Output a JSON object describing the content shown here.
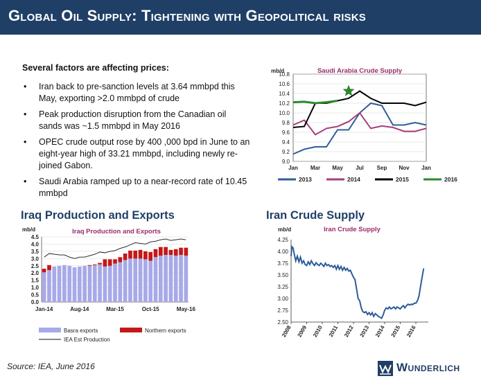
{
  "header": {
    "title": "Global Oil Supply: Tightening with Geopolitical risks"
  },
  "factors": {
    "heading": "Several factors are affecting prices:",
    "bullet_symbol": "•",
    "items": [
      "Iran back to pre-sanction levels at 3.64 mmbpd this May, exporting >2.0 mmbpd of crude",
      "Peak production disruption from the Canadian oil sands was ~1.5 mmbpd in May 2016",
      "OPEC crude output rose by 400 ,000 bpd in June to an eight-year high of 33.21 mmbpd, including newly re-joined Gabon.",
      "Saudi Arabia ramped up to a near-record rate of 10.45 mmbpd"
    ]
  },
  "sections": {
    "iraq_heading": "Iraq Production and Exports",
    "iran_heading": "Iran Crude Supply"
  },
  "footer": {
    "source": "Source: IEA, June 2016",
    "logo_text": "Wunderlich"
  },
  "colors": {
    "brand_navy": "#1f3f66",
    "chart_title_magenta": "#9b2a6a",
    "saudi_2013": "#2e5c9a",
    "saudi_2014": "#a63d7a",
    "saudi_2015": "#000000",
    "saudi_2016": "#2a8a2a",
    "basra": "#a7a9e8",
    "northern": "#c41818",
    "iran_line": "#2e5c9a"
  },
  "chart_data": [
    {
      "id": "saudi",
      "type": "line",
      "title": "Saudi Arabia Crude Supply",
      "ylabel": "mb/d",
      "ylim": [
        9.0,
        10.8
      ],
      "yticks": [
        "9.0",
        "9.2",
        "9.4",
        "9.6",
        "9.8",
        "10.0",
        "10.2",
        "10.4",
        "10.6",
        "10.8"
      ],
      "categories": [
        "Jan",
        "Feb",
        "Mar",
        "Apr",
        "May",
        "Jun",
        "Jul",
        "Aug",
        "Sep",
        "Oct",
        "Nov",
        "Dec",
        "Jan"
      ],
      "xtick_labels": [
        "Jan",
        "Mar",
        "May",
        "Jul",
        "Sep",
        "Nov",
        "Jan"
      ],
      "series": [
        {
          "name": "2013",
          "color": "#2e5c9a",
          "values": [
            9.15,
            9.25,
            9.3,
            9.3,
            9.65,
            9.65,
            10.0,
            10.2,
            10.15,
            9.75,
            9.75,
            9.8,
            9.75
          ]
        },
        {
          "name": "2014",
          "color": "#a63d7a",
          "values": [
            9.75,
            9.85,
            9.55,
            9.68,
            9.72,
            9.82,
            10.0,
            9.68,
            9.73,
            9.7,
            9.62,
            9.62,
            9.68
          ]
        },
        {
          "name": "2015",
          "color": "#000000",
          "values": [
            9.7,
            9.72,
            10.2,
            10.2,
            10.25,
            10.3,
            10.45,
            10.3,
            10.2,
            10.2,
            10.2,
            10.15,
            10.22
          ]
        },
        {
          "name": "2016",
          "color": "#2a8a2a",
          "values": [
            10.22,
            10.23,
            10.2,
            10.22,
            10.25,
            null,
            null,
            null,
            null,
            null,
            null,
            null,
            null
          ]
        }
      ],
      "annotations": [
        {
          "type": "star",
          "x": "Jun",
          "y": 10.45,
          "color": "#2a8a2a"
        }
      ]
    },
    {
      "id": "iraq",
      "type": "bar",
      "title": "Iraq Production and Exports",
      "ylabel": "mb/d",
      "ylim": [
        0.0,
        4.5
      ],
      "yticks": [
        "0.0",
        "0.5",
        "1.0",
        "1.5",
        "2.0",
        "2.5",
        "3.0",
        "3.5",
        "4.0",
        "4.5"
      ],
      "xtick_labels": [
        "Jan-14",
        "Aug-14",
        "Mar-15",
        "Oct-15",
        "May-16"
      ],
      "categories": [
        "Jan-14",
        "Feb-14",
        "Mar-14",
        "Apr-14",
        "May-14",
        "Jun-14",
        "Jul-14",
        "Aug-14",
        "Sep-14",
        "Oct-14",
        "Nov-14",
        "Dec-14",
        "Jan-15",
        "Feb-15",
        "Mar-15",
        "Apr-15",
        "May-15",
        "Jun-15",
        "Jul-15",
        "Aug-15",
        "Sep-15",
        "Oct-15",
        "Nov-15",
        "Dec-15",
        "Jan-16",
        "Feb-16",
        "Mar-16",
        "Apr-16",
        "May-16"
      ],
      "series": [
        {
          "name": "Basra exports",
          "color": "#a7a9e8",
          "kind": "bar",
          "values": [
            2.05,
            2.2,
            2.45,
            2.5,
            2.55,
            2.5,
            2.4,
            2.45,
            2.5,
            2.5,
            2.55,
            2.6,
            2.45,
            2.5,
            2.65,
            2.75,
            2.9,
            3.0,
            3.0,
            3.0,
            2.95,
            2.85,
            3.1,
            3.2,
            3.25,
            3.25,
            3.2,
            3.25,
            3.2
          ]
        },
        {
          "name": "Northern exports",
          "color": "#c41818",
          "kind": "bar",
          "values": [
            0.25,
            0.35,
            0.0,
            0.0,
            0.0,
            0.0,
            0.0,
            0.0,
            0.0,
            0.05,
            0.05,
            0.1,
            0.5,
            0.45,
            0.3,
            0.35,
            0.45,
            0.55,
            0.55,
            0.6,
            0.55,
            0.6,
            0.55,
            0.6,
            0.55,
            0.35,
            0.45,
            0.5,
            0.55
          ]
        },
        {
          "name": "IEA Est Production",
          "color": "#111111",
          "kind": "line",
          "values": [
            3.1,
            3.35,
            3.3,
            3.25,
            3.25,
            3.1,
            3.0,
            3.1,
            3.1,
            3.2,
            3.3,
            3.45,
            3.4,
            3.5,
            3.55,
            3.7,
            3.8,
            3.95,
            4.1,
            4.05,
            4.0,
            4.15,
            4.2,
            4.3,
            4.35,
            4.25,
            4.3,
            4.35,
            4.3
          ]
        }
      ]
    },
    {
      "id": "iran",
      "type": "line",
      "title": "Iran Crude Supply",
      "ylabel": "mb/d",
      "ylim": [
        2.5,
        4.25
      ],
      "yticks": [
        "2.50",
        "2.75",
        "3.00",
        "3.25",
        "3.50",
        "3.75",
        "4.00",
        "4.25"
      ],
      "xlim": [
        2008,
        2016.8
      ],
      "xtick_labels": [
        "2008",
        "2009",
        "2010",
        "2011",
        "2012",
        "2013",
        "2014",
        "2015",
        "2016"
      ],
      "series": [
        {
          "name": "Iran",
          "color": "#2e5c9a",
          "points": [
            [
              2008.0,
              3.9
            ],
            [
              2008.05,
              4.1
            ],
            [
              2008.12,
              4.08
            ],
            [
              2008.2,
              3.95
            ],
            [
              2008.3,
              3.8
            ],
            [
              2008.4,
              3.9
            ],
            [
              2008.5,
              3.78
            ],
            [
              2008.6,
              3.88
            ],
            [
              2008.7,
              3.75
            ],
            [
              2008.8,
              3.8
            ],
            [
              2008.9,
              3.72
            ],
            [
              2009.0,
              3.7
            ],
            [
              2009.1,
              3.78
            ],
            [
              2009.2,
              3.72
            ],
            [
              2009.3,
              3.8
            ],
            [
              2009.4,
              3.74
            ],
            [
              2009.5,
              3.7
            ],
            [
              2009.6,
              3.76
            ],
            [
              2009.7,
              3.72
            ],
            [
              2009.8,
              3.7
            ],
            [
              2009.9,
              3.75
            ],
            [
              2010.0,
              3.72
            ],
            [
              2010.1,
              3.68
            ],
            [
              2010.2,
              3.75
            ],
            [
              2010.3,
              3.7
            ],
            [
              2010.4,
              3.72
            ],
            [
              2010.5,
              3.68
            ],
            [
              2010.6,
              3.7
            ],
            [
              2010.7,
              3.66
            ],
            [
              2010.8,
              3.7
            ],
            [
              2010.9,
              3.62
            ],
            [
              2011.0,
              3.7
            ],
            [
              2011.1,
              3.62
            ],
            [
              2011.2,
              3.68
            ],
            [
              2011.3,
              3.6
            ],
            [
              2011.4,
              3.66
            ],
            [
              2011.5,
              3.6
            ],
            [
              2011.6,
              3.64
            ],
            [
              2011.7,
              3.58
            ],
            [
              2011.8,
              3.6
            ],
            [
              2011.9,
              3.52
            ],
            [
              2012.0,
              3.45
            ],
            [
              2012.1,
              3.4
            ],
            [
              2012.2,
              3.2
            ],
            [
              2012.3,
              3.0
            ],
            [
              2012.4,
              2.95
            ],
            [
              2012.5,
              2.8
            ],
            [
              2012.6,
              2.72
            ],
            [
              2012.7,
              2.7
            ],
            [
              2012.8,
              2.72
            ],
            [
              2012.9,
              2.66
            ],
            [
              2013.0,
              2.7
            ],
            [
              2013.1,
              2.65
            ],
            [
              2013.2,
              2.7
            ],
            [
              2013.3,
              2.62
            ],
            [
              2013.4,
              2.68
            ],
            [
              2013.5,
              2.65
            ],
            [
              2013.6,
              2.62
            ],
            [
              2013.7,
              2.6
            ],
            [
              2013.8,
              2.58
            ],
            [
              2013.9,
              2.65
            ],
            [
              2014.0,
              2.75
            ],
            [
              2014.1,
              2.8
            ],
            [
              2014.2,
              2.78
            ],
            [
              2014.3,
              2.82
            ],
            [
              2014.4,
              2.78
            ],
            [
              2014.5,
              2.8
            ],
            [
              2014.6,
              2.82
            ],
            [
              2014.7,
              2.78
            ],
            [
              2014.8,
              2.82
            ],
            [
              2014.9,
              2.8
            ],
            [
              2015.0,
              2.78
            ],
            [
              2015.1,
              2.82
            ],
            [
              2015.2,
              2.85
            ],
            [
              2015.3,
              2.8
            ],
            [
              2015.4,
              2.85
            ],
            [
              2015.5,
              2.88
            ],
            [
              2015.6,
              2.86
            ],
            [
              2015.7,
              2.88
            ],
            [
              2015.8,
              2.87
            ],
            [
              2015.9,
              2.9
            ],
            [
              2016.0,
              2.9
            ],
            [
              2016.1,
              2.95
            ],
            [
              2016.2,
              3.05
            ],
            [
              2016.3,
              3.25
            ],
            [
              2016.4,
              3.45
            ],
            [
              2016.5,
              3.64
            ]
          ]
        }
      ]
    }
  ]
}
